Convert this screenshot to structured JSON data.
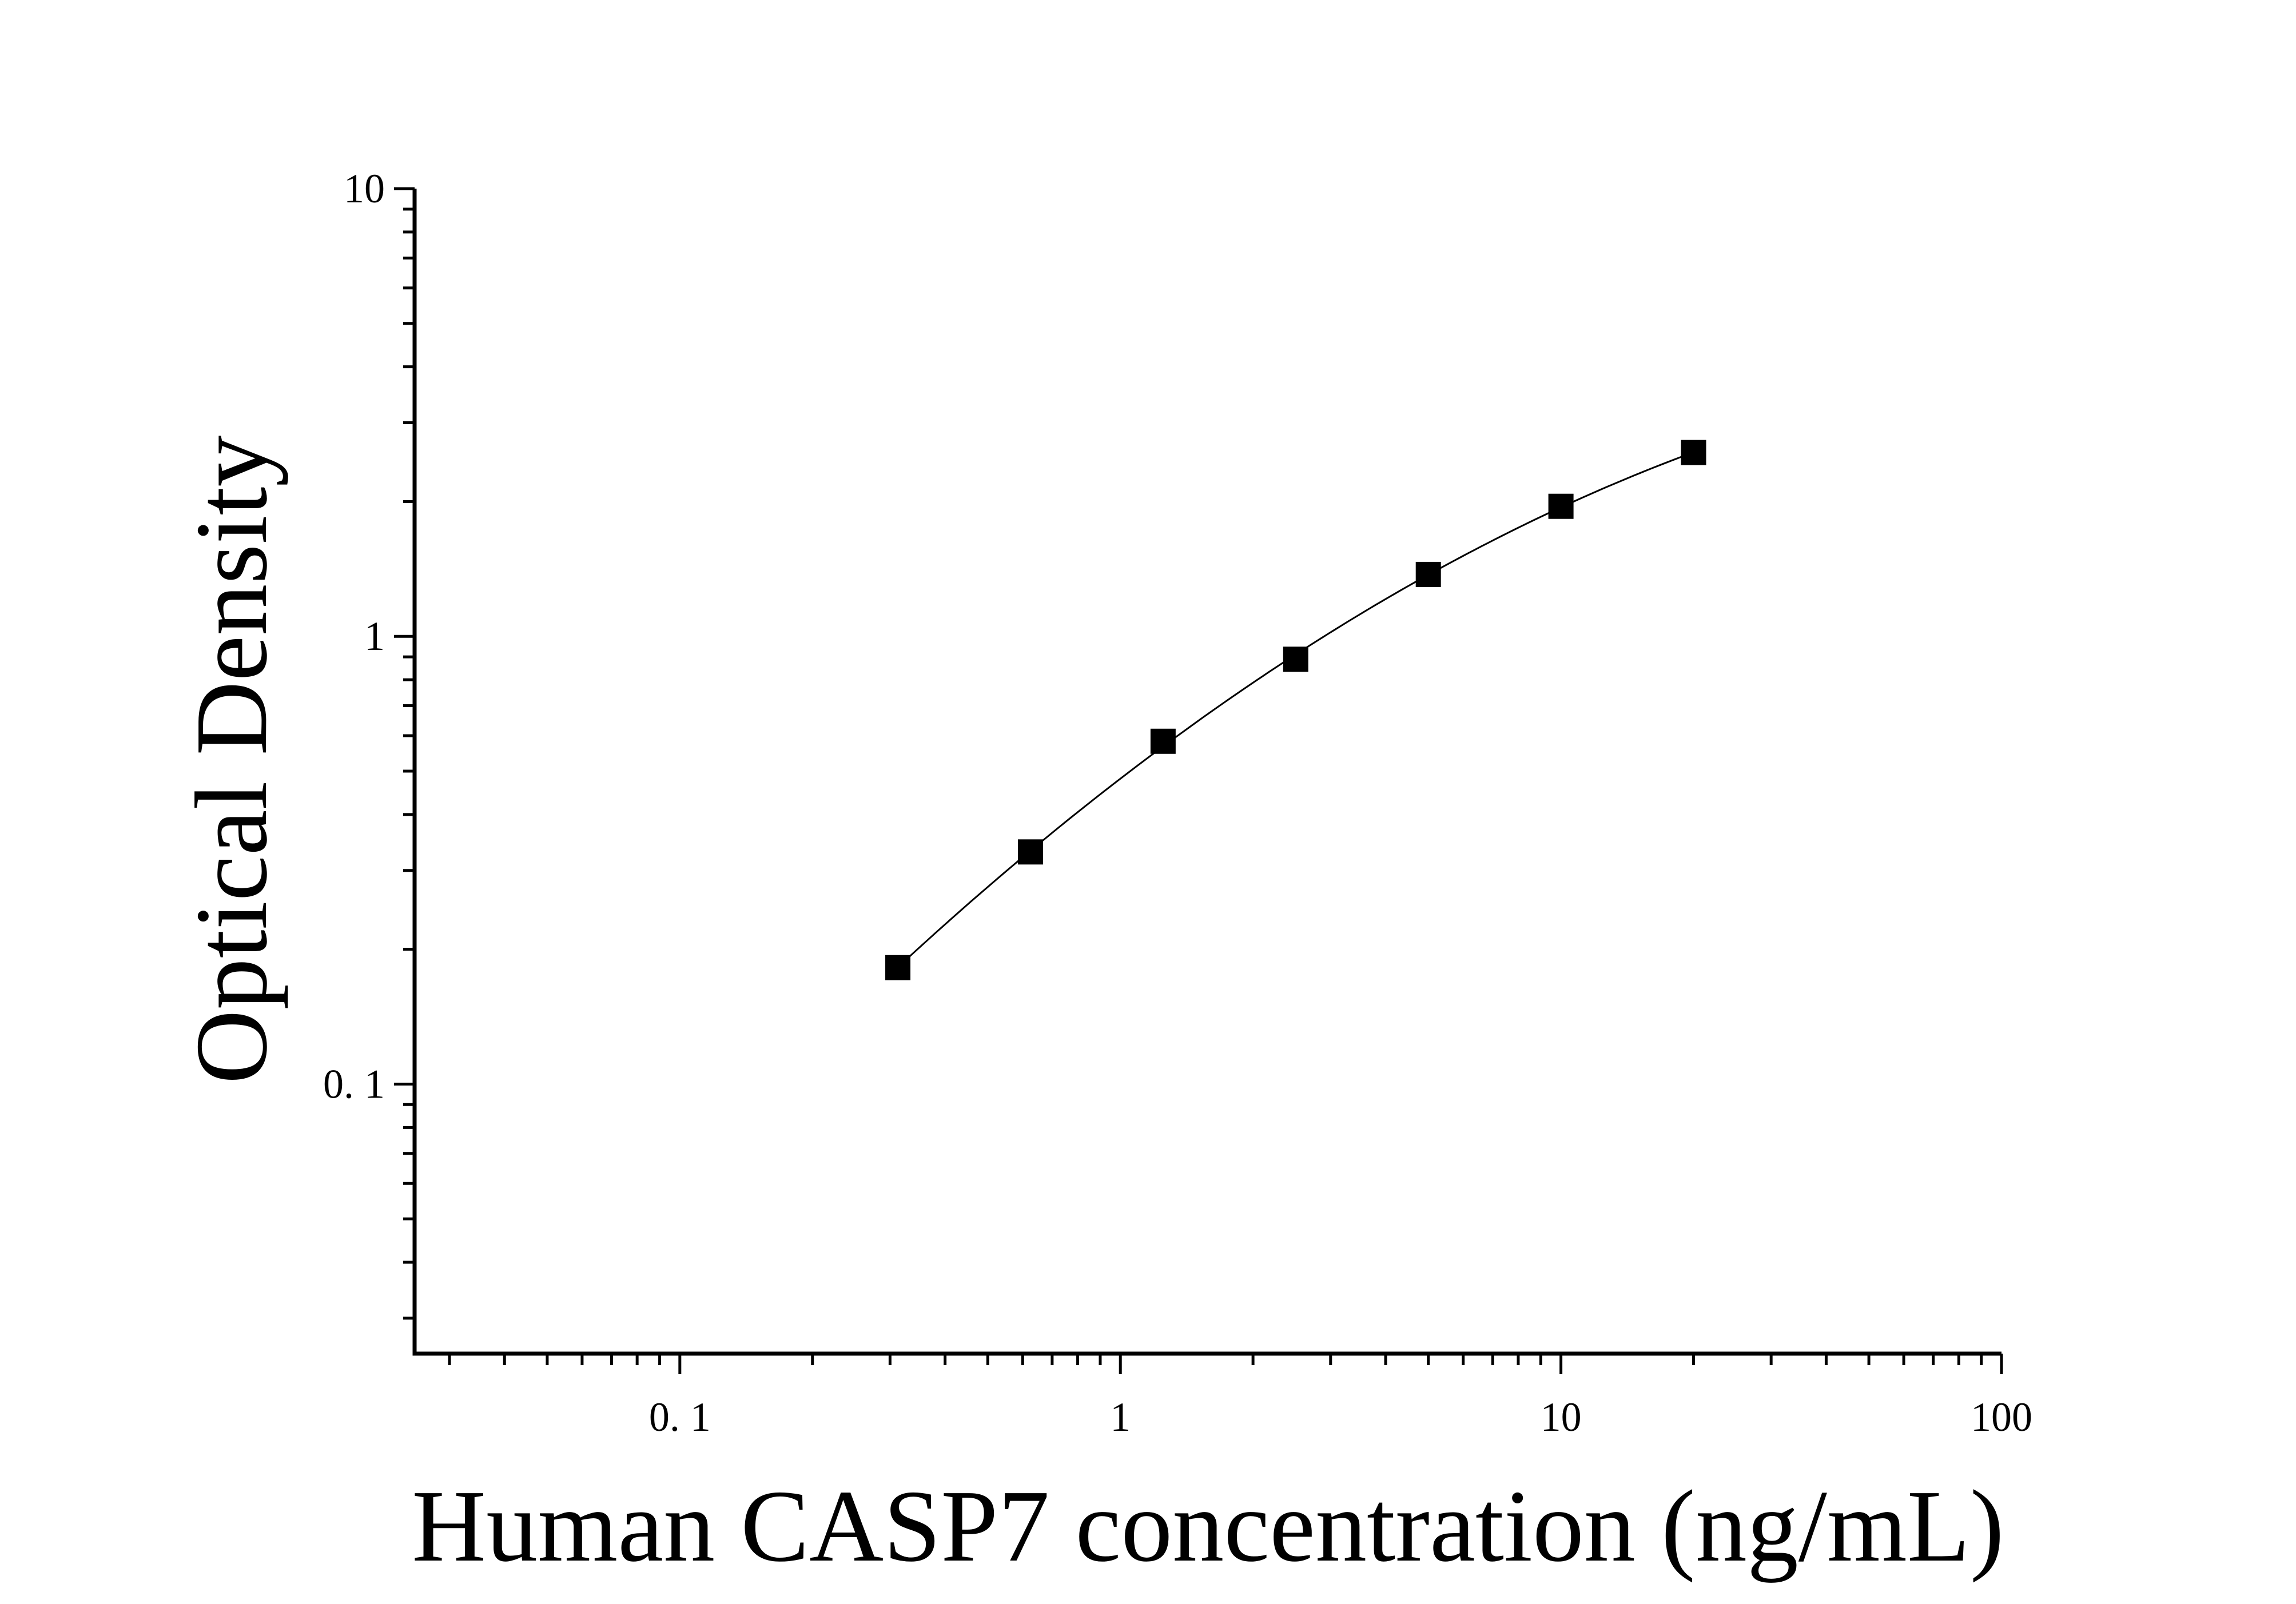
{
  "chart_data": {
    "type": "scatter",
    "title": "",
    "xlabel": "Human CASP7 concentration (ng/mL)",
    "ylabel": "Optical Density",
    "x_scale": "log",
    "y_scale": "log",
    "xlim": [
      0.025,
      100
    ],
    "ylim": [
      0.025,
      10
    ],
    "x_ticks": [
      {
        "value": 0.1,
        "label": "0. 1"
      },
      {
        "value": 1,
        "label": "1"
      },
      {
        "value": 10,
        "label": "10"
      },
      {
        "value": 100,
        "label": "100"
      }
    ],
    "y_ticks": [
      {
        "value": 0.1,
        "label": "0. 1"
      },
      {
        "value": 1,
        "label": "1"
      },
      {
        "value": 10,
        "label": "10"
      }
    ],
    "grid": false,
    "legend": "none",
    "marker": "square",
    "color": "#000000",
    "series": [
      {
        "x": [
          0.3125,
          0.625,
          1.25,
          2.5,
          5,
          10,
          20
        ],
        "y": [
          0.182,
          0.33,
          0.583,
          0.889,
          1.375,
          1.952,
          2.574
        ]
      }
    ]
  }
}
